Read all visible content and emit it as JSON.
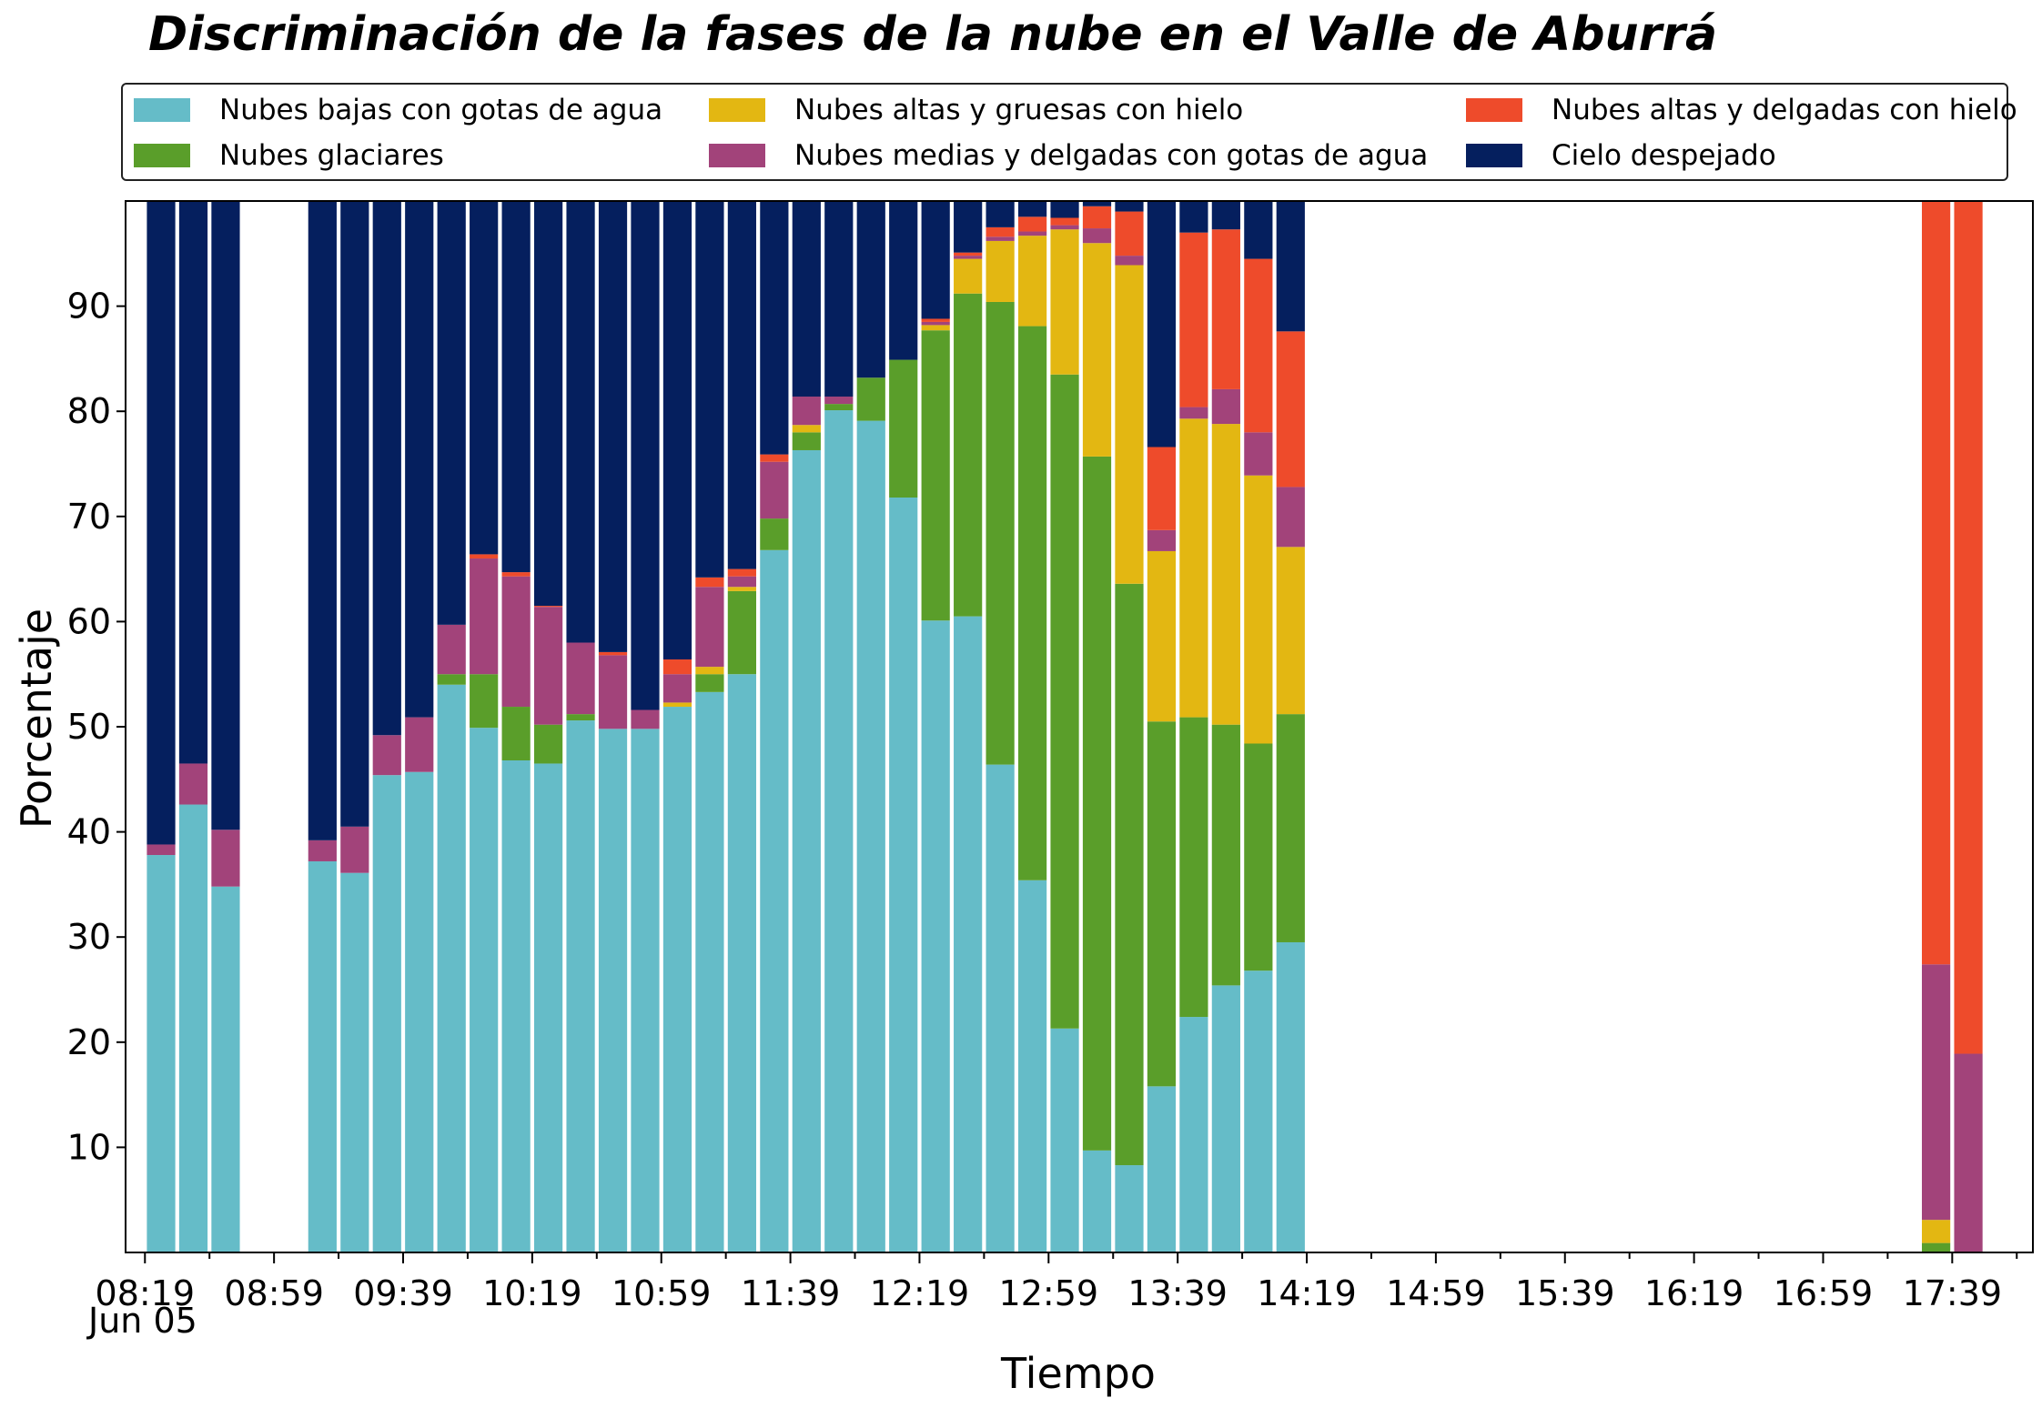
{
  "chart_data": {
    "type": "bar",
    "stacked": true,
    "title": "Discriminación de la fases de la nube en el Valle de Aburrá",
    "xlabel": "Tiempo",
    "ylabel": "Porcentaje",
    "date_label": "Jun 05",
    "ylim": [
      0,
      100
    ],
    "yticks": [
      10,
      20,
      30,
      40,
      50,
      60,
      70,
      80,
      90
    ],
    "xlim": [
      "08:13",
      "18:04"
    ],
    "xticks": [
      "08:19",
      "08:59",
      "09:39",
      "10:19",
      "10:59",
      "11:39",
      "12:19",
      "12:59",
      "13:39",
      "14:19",
      "14:59",
      "15:39",
      "16:19",
      "16:59",
      "17:39"
    ],
    "legend_position": "top",
    "series": [
      {
        "name": "Nubes bajas con gotas de agua",
        "color": "#65bcc8"
      },
      {
        "name": "Nubes glaciares",
        "color": "#5a9e2a"
      },
      {
        "name": "Nubes altas y gruesas con hielo",
        "color": "#e3b712"
      },
      {
        "name": "Nubes medias y delgadas con gotas de agua",
        "color": "#a2437a"
      },
      {
        "name": "Nubes altas y delgadas con hielo",
        "color": "#ee4b2b"
      },
      {
        "name": "Cielo despejado",
        "color": "#051f5e"
      }
    ],
    "bars": [
      {
        "time": "08:24",
        "values": [
          37.8,
          0,
          0,
          1.0,
          0,
          61.2
        ]
      },
      {
        "time": "08:34",
        "values": [
          42.6,
          0,
          0,
          3.9,
          0,
          53.5
        ]
      },
      {
        "time": "08:44",
        "values": [
          34.8,
          0,
          0,
          5.4,
          0,
          59.8
        ]
      },
      {
        "time": "09:14",
        "values": [
          37.2,
          0,
          0,
          2.0,
          0,
          60.8
        ]
      },
      {
        "time": "09:24",
        "values": [
          36.1,
          0,
          0,
          4.4,
          0,
          59.5
        ]
      },
      {
        "time": "09:34",
        "values": [
          45.4,
          0,
          0,
          3.8,
          0,
          50.8
        ]
      },
      {
        "time": "09:44",
        "values": [
          45.7,
          0,
          0,
          5.2,
          0,
          49.1
        ]
      },
      {
        "time": "09:54",
        "values": [
          54.0,
          1.0,
          0,
          4.7,
          0,
          40.3
        ]
      },
      {
        "time": "10:04",
        "values": [
          49.9,
          5.1,
          0,
          11.0,
          0.4,
          33.6
        ]
      },
      {
        "time": "10:14",
        "values": [
          46.8,
          5.1,
          0,
          12.4,
          0.4,
          35.3
        ]
      },
      {
        "time": "10:24",
        "values": [
          46.5,
          3.7,
          0,
          11.2,
          0.1,
          38.5
        ]
      },
      {
        "time": "10:34",
        "values": [
          50.6,
          0.6,
          0,
          6.8,
          0,
          42.0
        ]
      },
      {
        "time": "10:44",
        "values": [
          49.8,
          0,
          0,
          7.0,
          0.3,
          42.9
        ]
      },
      {
        "time": "10:54",
        "values": [
          49.8,
          0,
          0,
          1.8,
          0,
          48.4
        ]
      },
      {
        "time": "11:04",
        "values": [
          51.9,
          0,
          0.4,
          2.7,
          1.4,
          43.6
        ]
      },
      {
        "time": "11:14",
        "values": [
          53.3,
          1.7,
          0.7,
          7.6,
          0.9,
          35.8
        ]
      },
      {
        "time": "11:24",
        "values": [
          55.0,
          7.9,
          0.4,
          1.0,
          0.7,
          35.0
        ]
      },
      {
        "time": "11:34",
        "values": [
          66.8,
          3.0,
          0,
          5.4,
          0.7,
          24.1
        ]
      },
      {
        "time": "11:44",
        "values": [
          76.3,
          1.7,
          0.7,
          2.7,
          0,
          18.6
        ]
      },
      {
        "time": "11:54",
        "values": [
          80.1,
          0.6,
          0,
          0.7,
          0,
          18.6
        ]
      },
      {
        "time": "12:04",
        "values": [
          79.1,
          4.1,
          0,
          0,
          0,
          16.8
        ]
      },
      {
        "time": "12:14",
        "values": [
          71.8,
          13.1,
          0,
          0,
          0,
          15.1
        ]
      },
      {
        "time": "12:24",
        "values": [
          60.1,
          27.6,
          0.5,
          0.3,
          0.3,
          11.2
        ]
      },
      {
        "time": "12:34",
        "values": [
          60.5,
          30.7,
          3.3,
          0.3,
          0.3,
          4.9
        ]
      },
      {
        "time": "12:44",
        "values": [
          46.4,
          44.0,
          5.8,
          0.4,
          0.9,
          2.5
        ]
      },
      {
        "time": "12:54",
        "values": [
          35.4,
          52.7,
          8.6,
          0.4,
          1.4,
          1.5
        ]
      },
      {
        "time": "13:04",
        "values": [
          21.3,
          62.2,
          13.8,
          0.4,
          0.7,
          1.6
        ]
      },
      {
        "time": "13:14",
        "values": [
          9.7,
          66.0,
          20.3,
          1.4,
          2.1,
          0.5
        ]
      },
      {
        "time": "13:24",
        "values": [
          8.3,
          55.3,
          30.3,
          0.9,
          4.2,
          1.0
        ]
      },
      {
        "time": "13:34",
        "values": [
          15.8,
          34.7,
          16.2,
          2.0,
          7.9,
          23.4
        ]
      },
      {
        "time": "13:44",
        "values": [
          22.4,
          28.5,
          28.4,
          1.1,
          16.6,
          3.0
        ]
      },
      {
        "time": "13:54",
        "values": [
          25.4,
          24.8,
          28.6,
          3.3,
          15.2,
          2.7
        ]
      },
      {
        "time": "14:04",
        "values": [
          26.8,
          21.6,
          25.5,
          4.1,
          16.5,
          5.5
        ]
      },
      {
        "time": "14:14",
        "values": [
          29.5,
          21.7,
          15.9,
          5.7,
          14.8,
          12.4
        ]
      },
      {
        "time": "17:34",
        "values": [
          0,
          0.9,
          2.2,
          24.3,
          72.6,
          0
        ]
      },
      {
        "time": "17:44",
        "values": [
          0,
          0,
          0,
          18.9,
          81.1,
          0
        ]
      }
    ]
  }
}
